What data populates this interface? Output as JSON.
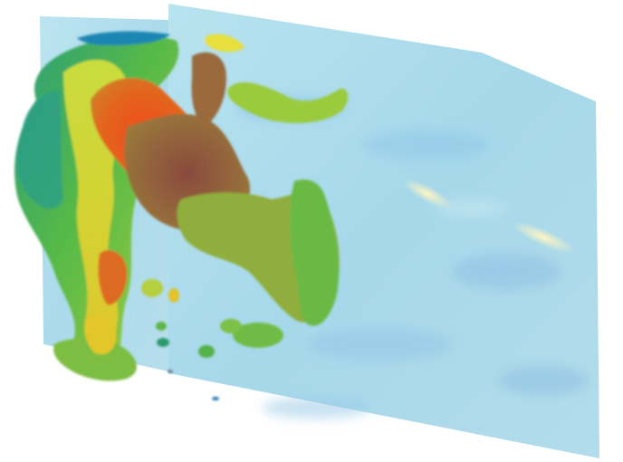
{
  "image": {
    "kind": "3d-volume-rendering",
    "subject": "isosurface-over-slice-planes",
    "background_color": "#ffffff",
    "slice_plane_color": "#a9dcec",
    "palette": {
      "low": "#1c8fb0",
      "mid": "#4db848",
      "high": "#e8e440",
      "peak": "#e8521e",
      "shadow": "#8a5a3e"
    }
  }
}
